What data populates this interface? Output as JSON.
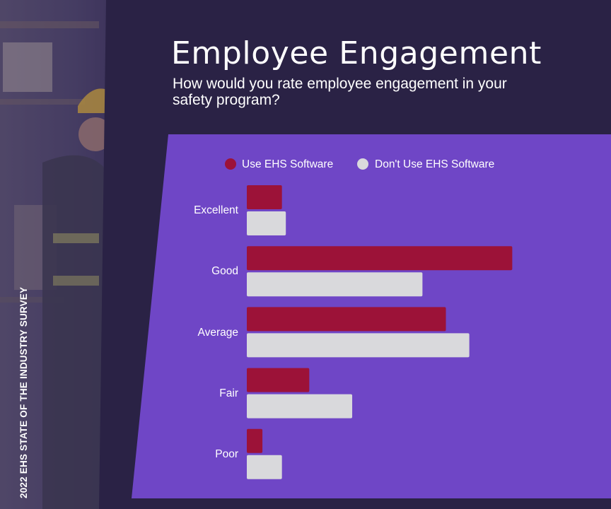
{
  "header": {
    "title": "Employee Engagement",
    "subtitle": "How would you rate employee engagement in your safety program?"
  },
  "side_caption": "2022 EHS STATE OF THE INDUSTRY SURVEY",
  "colors": {
    "page_background": "#2a2245",
    "chart_panel": "#6f46c6",
    "series_use": "#9c1238",
    "series_dont_use": "#d9d9dc"
  },
  "chart_data": {
    "type": "bar",
    "orientation": "horizontal",
    "title": "",
    "xlabel": "",
    "ylabel": "",
    "categories": [
      "Excellent",
      "Good",
      "Average",
      "Fair",
      "Poor"
    ],
    "series": [
      {
        "name": "Use EHS Software",
        "color": "#9c1238",
        "values": [
          9,
          68,
          51,
          16,
          4
        ]
      },
      {
        "name": "Don't Use EHS Software",
        "color": "#d9d9dc",
        "values": [
          10,
          45,
          57,
          27,
          9
        ]
      }
    ],
    "xlim": [
      0,
      100
    ],
    "grid": false,
    "legend_position": "top"
  }
}
